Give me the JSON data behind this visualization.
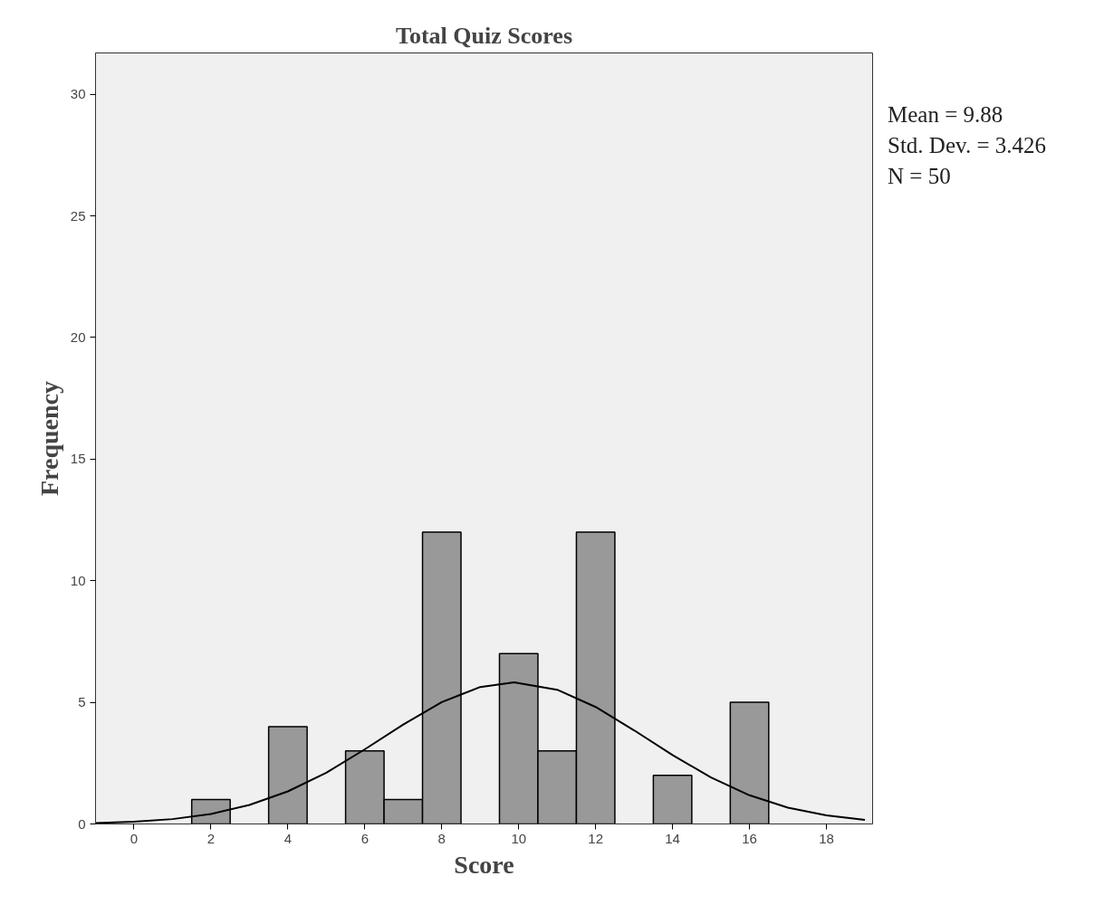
{
  "chart_data": {
    "type": "histogram",
    "title": "Total Quiz Scores",
    "xlabel": "Score",
    "ylabel": "Frequency",
    "xlim": [
      -1,
      19.2
    ],
    "ylim": [
      0,
      31.7
    ],
    "xticks": [
      0,
      2,
      4,
      6,
      8,
      10,
      12,
      14,
      16,
      18
    ],
    "yticks": [
      0,
      5,
      10,
      15,
      20,
      25,
      30
    ],
    "grid": false,
    "series": [
      {
        "color": "#999999",
        "bins": [
          1.5,
          2.5,
          3.5,
          4.5,
          5.5,
          6.5,
          7.5,
          8.5,
          9.5,
          10.5,
          11.5,
          12.5,
          13.5,
          14.5,
          15.5,
          16.5
        ],
        "values": [
          1,
          0,
          4,
          0,
          3,
          1,
          12,
          0,
          7,
          3,
          12,
          0,
          2,
          0,
          5
        ]
      },
      {
        "type": "line",
        "color": "#000000",
        "x": [
          -1,
          0,
          1,
          2,
          3,
          4,
          5,
          6,
          7,
          8,
          9,
          9.88,
          11,
          12,
          13,
          14,
          15,
          16,
          17,
          18,
          19
        ],
        "values": [
          0.04,
          0.09,
          0.2,
          0.41,
          0.78,
          1.34,
          2.11,
          3.07,
          4.09,
          5.01,
          5.63,
          5.82,
          5.52,
          4.81,
          3.85,
          2.83,
          1.91,
          1.18,
          0.67,
          0.35,
          0.17
        ]
      }
    ],
    "annotations": [
      "Mean = 9.88",
      "Std. Dev. = 3.426",
      "N = 50"
    ]
  }
}
